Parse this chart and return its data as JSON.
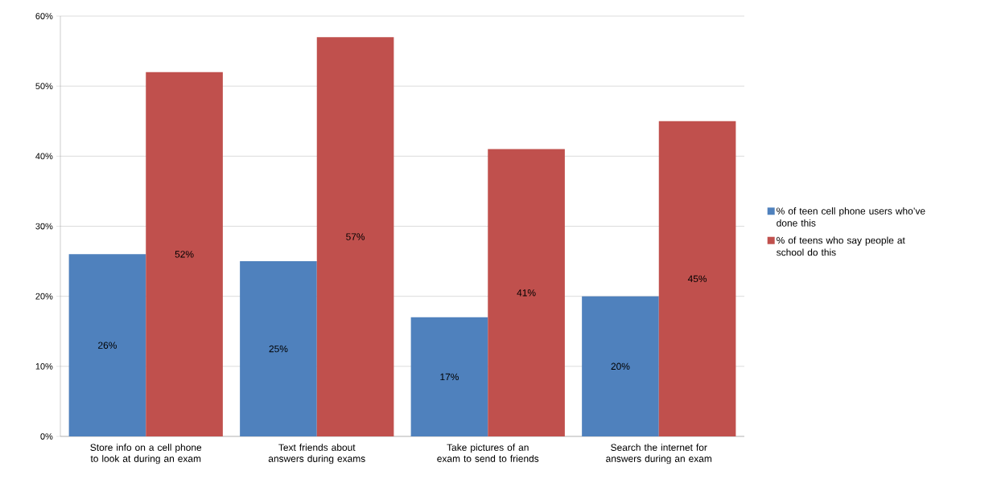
{
  "chart_data": {
    "type": "bar",
    "categories": [
      "Store info on a cell phone to look at during an exam",
      "Text friends about answers during exams",
      "Take pictures of an exam to send to friends",
      "Search the internet for answers during an exam"
    ],
    "series": [
      {
        "name": "% of teen cell phone users who’ve done this",
        "color": "#4f81bd",
        "values": [
          26,
          25,
          17,
          20
        ],
        "value_labels": [
          "26%",
          "25%",
          "17%",
          "20%"
        ]
      },
      {
        "name": "% of teens who say people at school do this",
        "color": "#c0504d",
        "values": [
          52,
          57,
          41,
          45
        ],
        "value_labels": [
          "52%",
          "57%",
          "41%",
          "45%"
        ]
      }
    ],
    "ylim": [
      0,
      60
    ],
    "yticks": [
      {
        "value": 0,
        "label": "0%"
      },
      {
        "value": 10,
        "label": "10%"
      },
      {
        "value": 20,
        "label": "20%"
      },
      {
        "value": 30,
        "label": "30%"
      },
      {
        "value": 40,
        "label": "40%"
      },
      {
        "value": 50,
        "label": "50%"
      },
      {
        "value": 60,
        "label": "60%"
      }
    ],
    "grid": "y",
    "legend": "right"
  }
}
